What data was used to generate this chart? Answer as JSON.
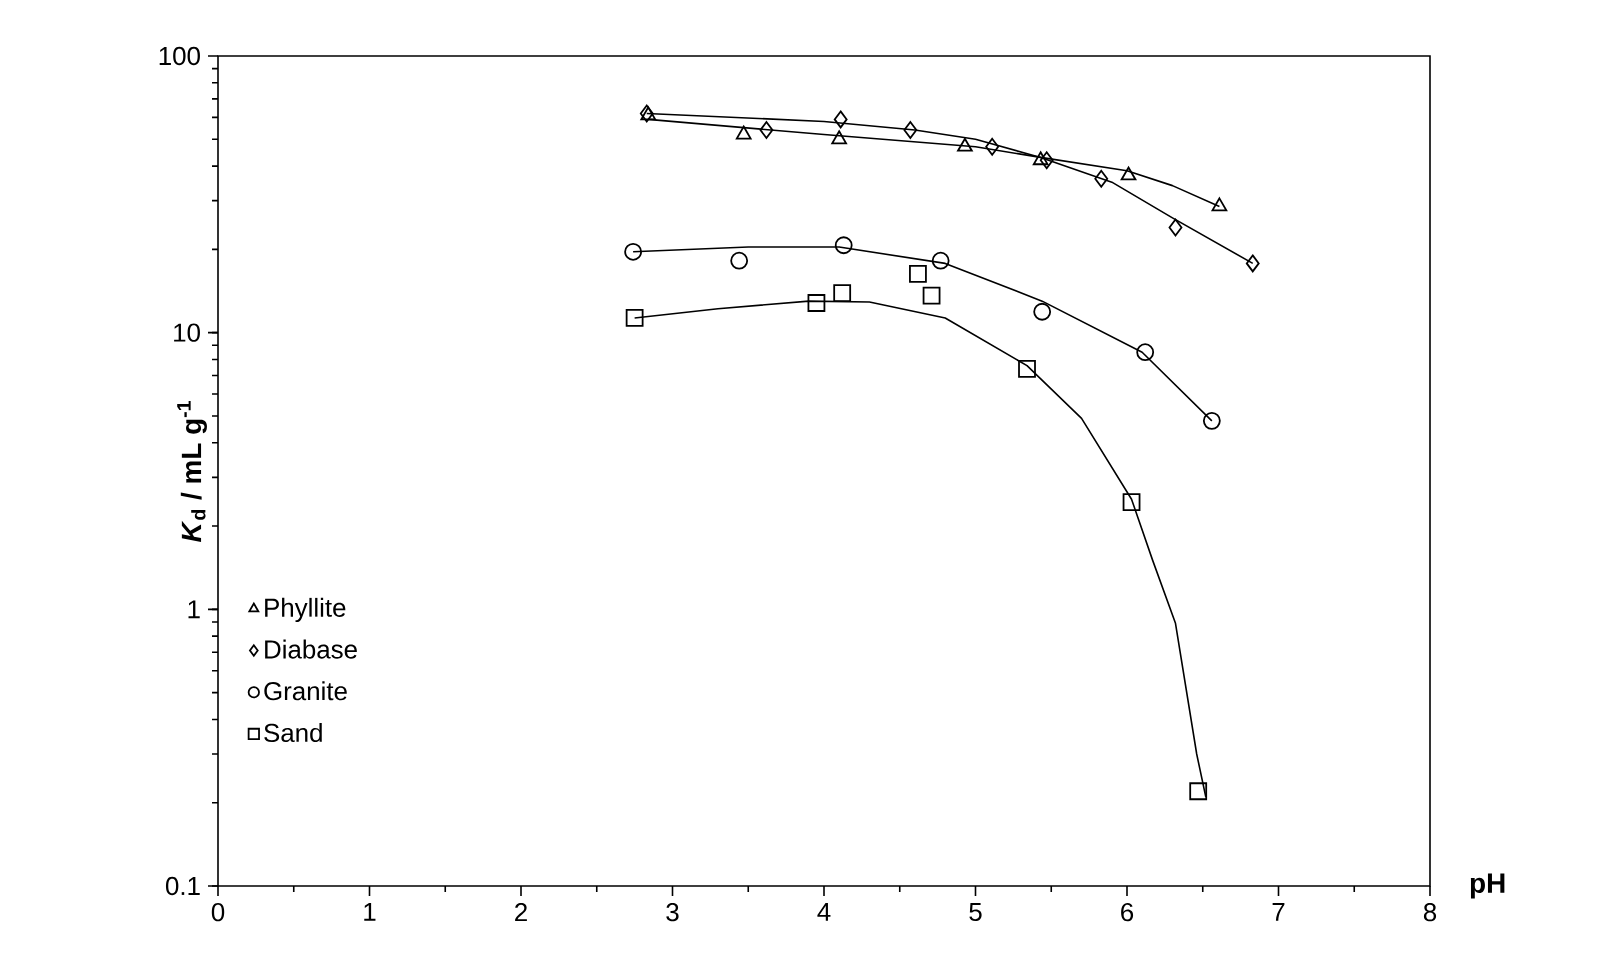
{
  "chart_data": {
    "type": "scatter",
    "xlabel": "pH",
    "ylabel": "*K*$_{d}$ / mL g$^{-1}$",
    "log": "y",
    "xlim": [
      0,
      8
    ],
    "ylim": [
      0.1,
      100
    ],
    "xticks": [
      0,
      1,
      2,
      3,
      4,
      5,
      6,
      7,
      8
    ],
    "yticks": [
      0.1,
      1,
      10,
      100
    ],
    "legend": "bottom left",
    "series": [
      {
        "name": "Phyllite",
        "color": "#000000",
        "marker": "triangle",
        "x": [
          2.84,
          3.47,
          4.1,
          4.93,
          5.43,
          6.01,
          6.61
        ],
        "values": [
          61,
          52,
          50,
          47,
          42,
          37,
          28.6
        ]
      },
      {
        "name": "Diabase",
        "color": "#000000",
        "marker": "diamond",
        "x": [
          2.83,
          3.62,
          4.11,
          4.57,
          5.11,
          5.47,
          5.83,
          6.32,
          6.83
        ],
        "values": [
          62,
          54,
          59,
          54,
          47,
          42,
          36,
          24,
          17.8
        ]
      },
      {
        "name": "Granite",
        "color": "#000000",
        "marker": "circle",
        "x": [
          2.74,
          3.44,
          4.13,
          4.77,
          5.44,
          6.12,
          6.56
        ],
        "values": [
          19.6,
          18.2,
          20.7,
          18.2,
          11.9,
          8.5,
          4.8
        ]
      },
      {
        "name": "Sand",
        "color": "#000000",
        "marker": "square",
        "x": [
          2.75,
          3.95,
          4.12,
          4.62,
          4.71,
          5.34,
          6.03,
          6.47
        ],
        "values": [
          11.3,
          12.8,
          13.9,
          16.3,
          13.6,
          7.4,
          2.44,
          0.22
        ]
      },
      {
        "type": "line",
        "color": "#000000",
        "marker": "none",
        "x": [
          2.84,
          4.0,
          5.0,
          5.43,
          6.0,
          6.3,
          6.61
        ],
        "values": [
          59,
          52,
          47,
          43,
          38.5,
          34,
          28.6
        ]
      },
      {
        "type": "line",
        "color": "#000000",
        "marker": "none",
        "x": [
          2.83,
          4.0,
          4.6,
          5.0,
          5.43,
          5.9,
          6.3,
          6.83
        ],
        "values": [
          62,
          58,
          54,
          50,
          43,
          35,
          26,
          17.8
        ]
      },
      {
        "type": "line",
        "color": "#000000",
        "marker": "none",
        "x": [
          2.74,
          3.5,
          4.1,
          4.8,
          5.44,
          6.1,
          6.56
        ],
        "values": [
          19.6,
          20.4,
          20.4,
          17.8,
          13,
          8.5,
          4.8
        ]
      },
      {
        "type": "line",
        "color": "#000000",
        "marker": "none",
        "x": [
          2.75,
          3.3,
          3.9,
          4.3,
          4.8,
          5.34,
          5.7,
          6.03,
          6.17,
          6.32,
          6.46,
          6.52
        ],
        "values": [
          11.3,
          12.2,
          13.0,
          12.9,
          11.3,
          7.6,
          4.9,
          2.5,
          1.5,
          0.89,
          0.3,
          0.21
        ]
      }
    ]
  }
}
